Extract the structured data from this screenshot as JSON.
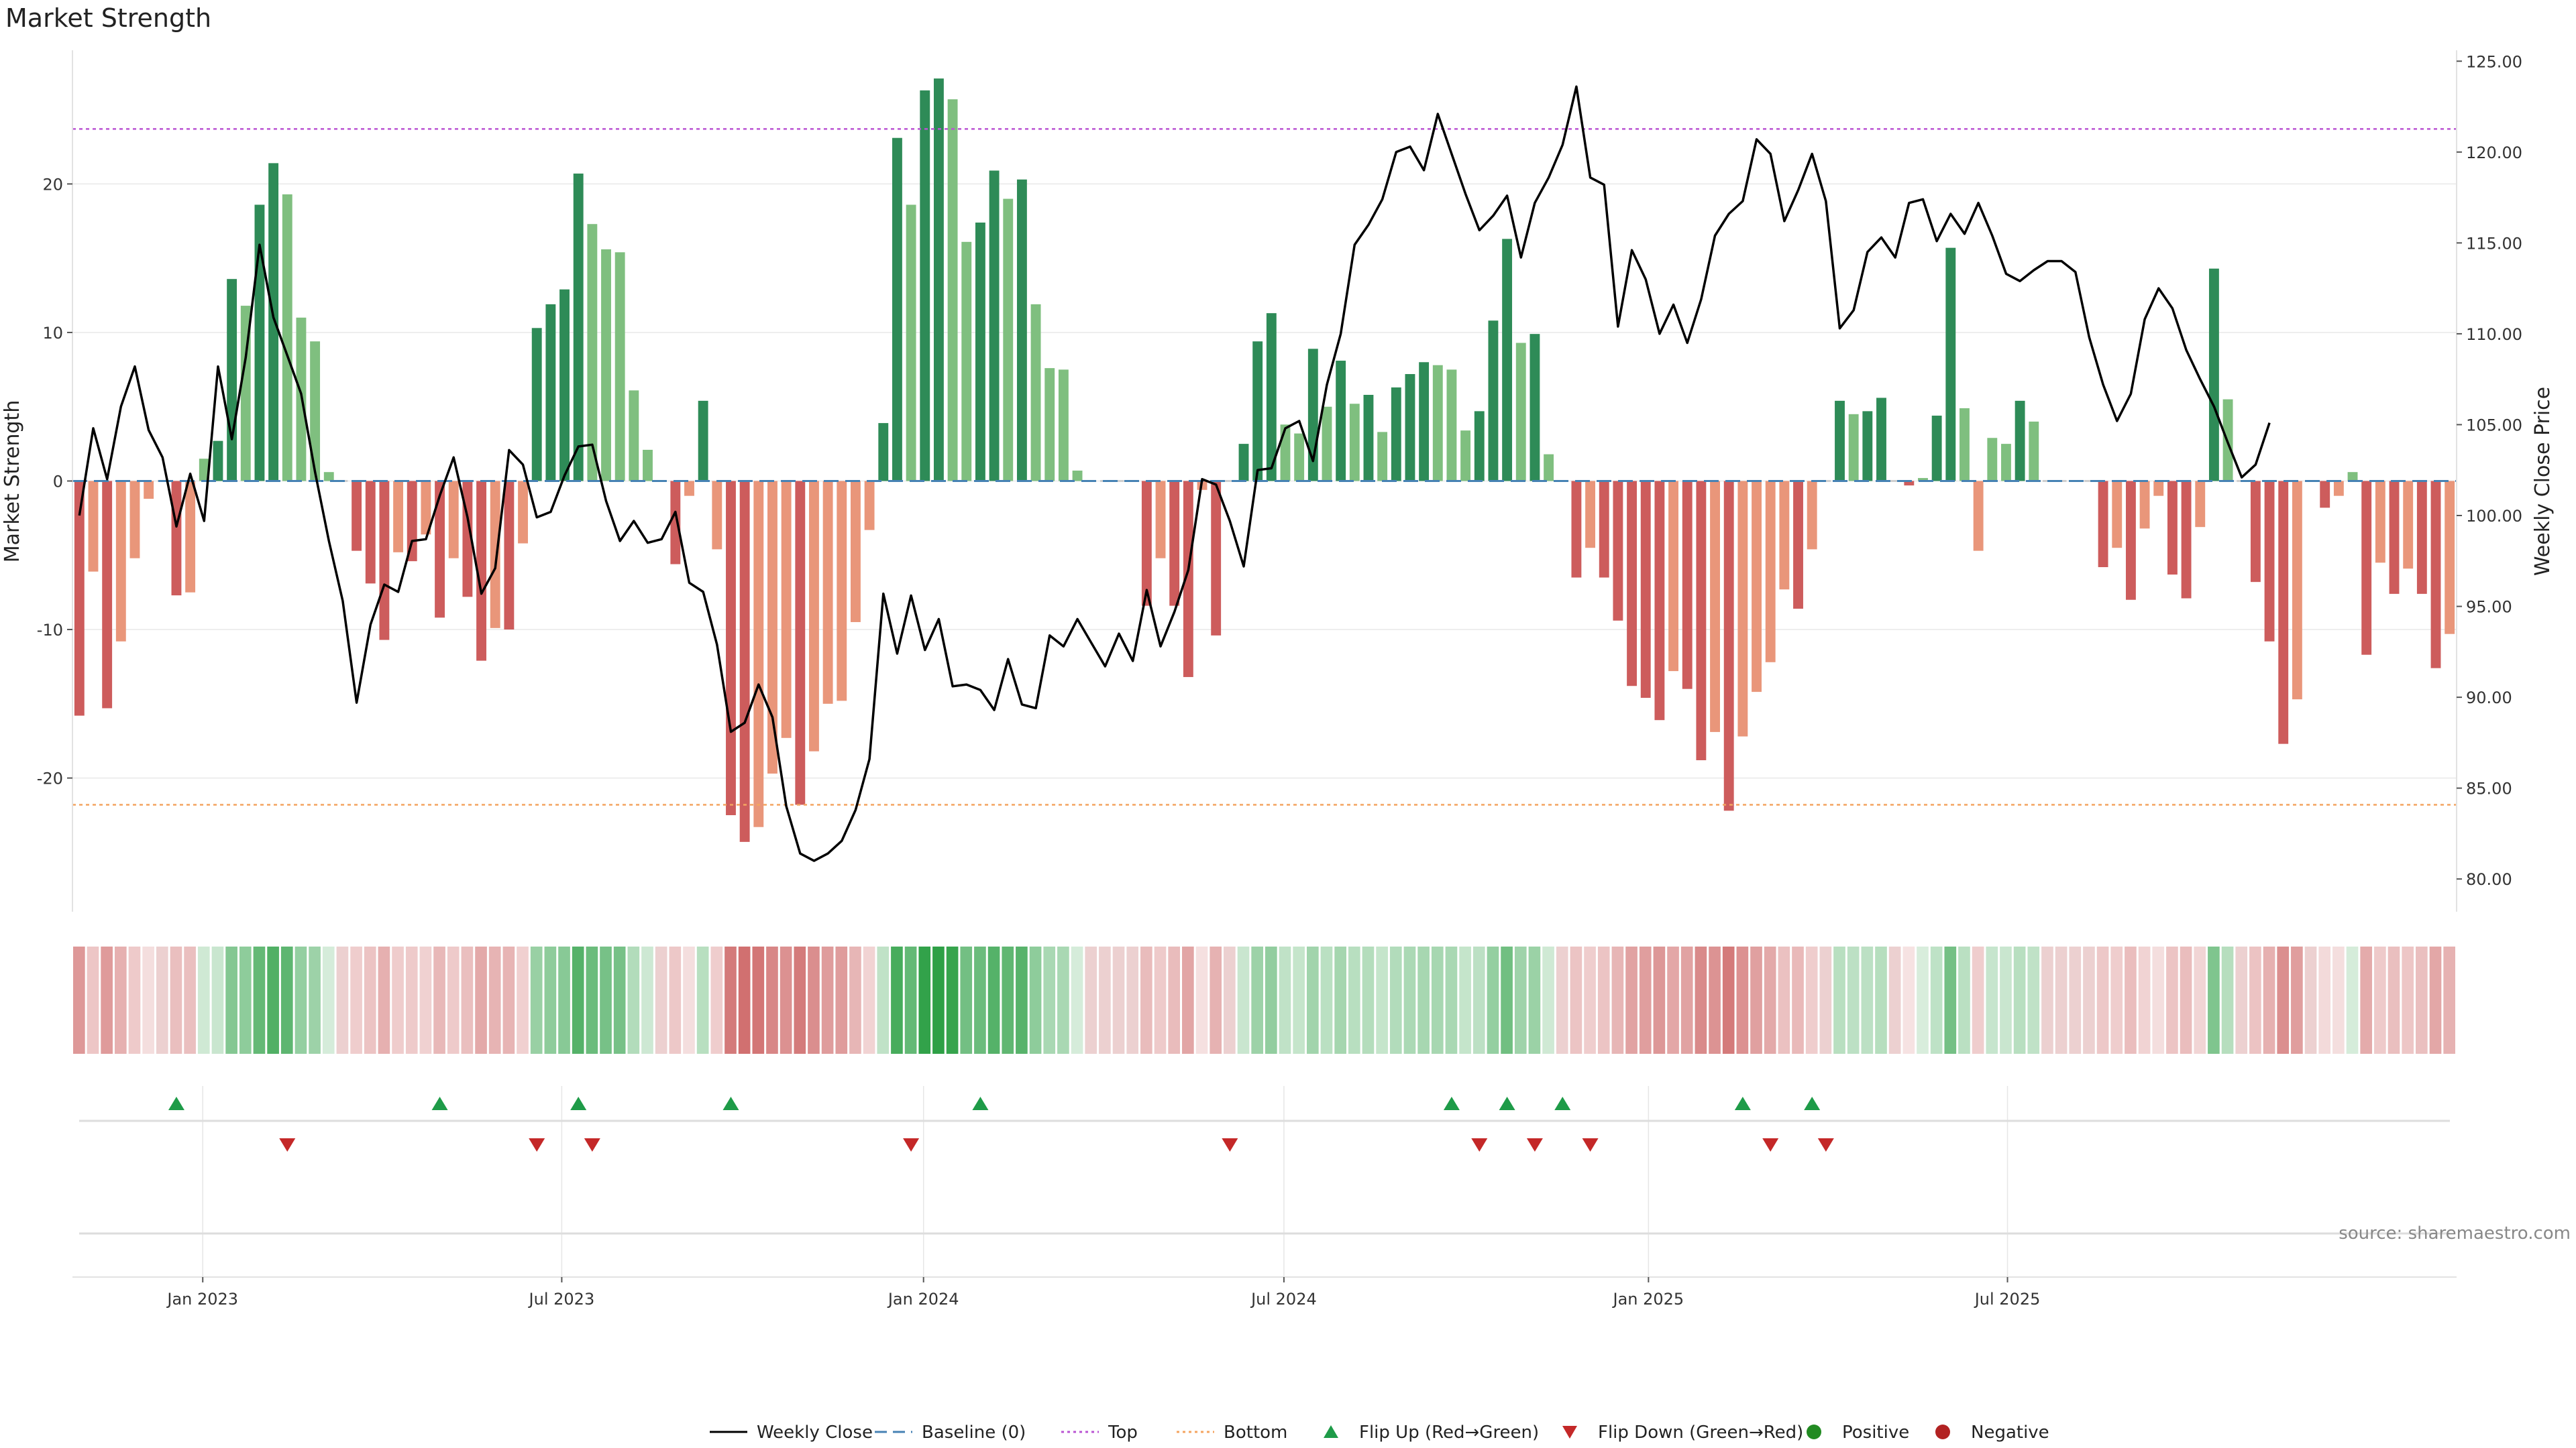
{
  "chart_data": {
    "type": "bar+line",
    "title": "Market Strength",
    "ylabel_left": "Market Strength",
    "ylabel_right": "Weekly Close Price",
    "ylim_left": [
      -29,
      29
    ],
    "ylim_right": [
      78.2,
      125.6
    ],
    "left_ticks": [
      "20",
      "10",
      "0",
      "-10",
      "-20"
    ],
    "left_tick_values": [
      20,
      10,
      0,
      -10,
      -20
    ],
    "right_ticks": [
      "125.00",
      "120.00",
      "115.00",
      "110.00",
      "105.00",
      "100.00",
      "95.00",
      "90.00",
      "85.00",
      "80.00"
    ],
    "right_tick_values": [
      125,
      120,
      115,
      110,
      105,
      100,
      95,
      90,
      85,
      80
    ],
    "x_ticks": [
      "Jan 2023",
      "Jul 2023",
      "Jan 2024",
      "Jul 2024",
      "Jan 2025",
      "Jul 2025"
    ],
    "x_tick_weeks": [
      9.4,
      35.3,
      61.4,
      87.4,
      113.7,
      139.6
    ],
    "top_threshold": 23.7,
    "bottom_threshold": -21.8,
    "strength": [
      -15.8,
      -6.1,
      -15.3,
      -10.8,
      -5.2,
      -1.2,
      0,
      -7.7,
      -7.5,
      1.5,
      2.7,
      13.6,
      11.8,
      18.6,
      21.4,
      19.3,
      11.0,
      9.4,
      0.6,
      0,
      -4.7,
      -6.9,
      -10.7,
      -4.8,
      -5.4,
      -3.6,
      -9.2,
      -5.2,
      -7.8,
      -12.1,
      -9.9,
      -10.0,
      -4.2,
      10.3,
      11.9,
      12.9,
      20.7,
      17.3,
      15.6,
      15.4,
      6.1,
      2.1,
      0,
      -5.6,
      -1.0,
      5.4,
      -4.6,
      -22.5,
      -24.3,
      -23.3,
      -19.7,
      -17.3,
      -21.8,
      -18.2,
      -15.0,
      -14.8,
      -9.5,
      -3.3,
      3.9,
      23.1,
      18.6,
      26.3,
      27.1,
      25.7,
      16.1,
      17.4,
      20.9,
      19.0,
      20.3,
      11.9,
      7.6,
      7.5,
      0.7,
      0,
      0,
      0,
      0,
      -8.4,
      -5.2,
      -8.4,
      -13.2,
      -0.6,
      -10.4,
      0,
      2.5,
      9.4,
      11.3,
      3.8,
      3.2,
      8.9,
      5.0,
      8.1,
      5.2,
      5.8,
      3.3,
      6.3,
      7.2,
      8.0,
      7.8,
      7.5,
      3.4,
      4.7,
      10.8,
      16.3,
      9.3,
      9.9,
      1.8,
      0,
      -6.5,
      -4.5,
      -6.5,
      -9.4,
      -13.8,
      -14.6,
      -16.1,
      -12.8,
      -14.0,
      -18.8,
      -16.9,
      -22.2,
      -17.2,
      -14.2,
      -12.2,
      -7.3,
      -8.6,
      -4.6,
      0,
      5.4,
      4.5,
      4.7,
      5.6,
      0,
      -0.3,
      0.2,
      4.4,
      15.7,
      4.9,
      -4.7,
      2.9,
      2.5,
      5.4,
      4.0,
      0,
      0,
      0,
      0,
      -5.8,
      -4.5,
      -8.0,
      -3.2,
      -1.0,
      -6.3,
      -7.9,
      -3.1,
      14.3,
      5.5,
      0,
      -6.8,
      -10.8,
      -17.7,
      -14.7,
      0,
      -1.8,
      -1.0,
      0.6,
      -11.7,
      -5.5,
      -7.6,
      -5.9,
      -7.6,
      -12.6,
      -10.3
    ],
    "close": [
      100.0,
      104.8,
      102.0,
      106.0,
      108.2,
      104.7,
      103.2,
      99.4,
      102.3,
      99.7,
      108.2,
      104.2,
      108.7,
      114.9,
      110.9,
      108.8,
      106.7,
      102.4,
      98.6,
      95.3,
      89.7,
      94.0,
      96.2,
      95.8,
      98.6,
      98.7,
      101.1,
      103.2,
      99.9,
      95.7,
      97.1,
      103.6,
      102.8,
      99.9,
      100.2,
      102.2,
      103.8,
      103.9,
      100.8,
      98.6,
      99.7,
      98.5,
      98.7,
      100.2,
      96.3,
      95.8,
      92.9,
      88.1,
      88.6,
      90.7,
      88.9,
      84.0,
      81.4,
      81.0,
      81.4,
      82.1,
      83.8,
      86.6,
      95.7,
      92.4,
      95.6,
      92.6,
      94.3,
      90.6,
      90.7,
      90.4,
      89.3,
      92.1,
      89.6,
      89.4,
      93.4,
      92.8,
      94.3,
      93.0,
      91.7,
      93.5,
      92.0,
      95.9,
      92.8,
      94.7,
      97.0,
      102.0,
      101.7,
      99.7,
      97.2,
      102.5,
      102.6,
      104.8,
      105.2,
      103.0,
      107.2,
      110.0,
      114.9,
      116.0,
      117.4,
      120.0,
      120.3,
      119.0,
      122.1,
      119.9,
      117.7,
      115.7,
      116.5,
      117.6,
      114.2,
      117.2,
      118.6,
      120.4,
      123.6,
      118.6,
      118.2,
      110.4,
      114.6,
      113.0,
      110.0,
      111.6,
      109.5,
      111.9,
      115.4,
      116.6,
      117.3,
      120.7,
      119.9,
      116.2,
      117.9,
      119.9,
      117.3,
      110.3,
      111.3,
      114.5,
      115.3,
      114.2,
      117.2,
      117.4,
      115.1,
      116.6,
      115.5,
      117.2,
      115.4,
      113.3,
      112.9,
      113.5,
      114.0,
      114.0,
      113.4,
      109.8,
      107.2,
      105.2,
      106.7,
      110.8,
      112.5,
      111.4,
      109.1,
      107.5,
      106.0,
      104.0,
      102.1,
      102.8,
      105.1
    ],
    "flip_up_weeks": [
      7,
      26,
      36,
      47,
      65,
      99,
      103,
      107,
      120,
      125
    ],
    "flip_down_weeks": [
      15,
      33,
      37,
      60,
      83,
      101,
      105,
      109,
      122,
      126
    ],
    "colors": {
      "pos_strong": "#2e8b57",
      "pos_light": "#7fbf7f",
      "neg_strong": "#cd5c5c",
      "neg_light": "#e9967a",
      "line": "#000000",
      "baseline": "#4682b4",
      "top": "#ba55d3",
      "bottom": "#f4a460",
      "flip_up": "#1e9b48",
      "flip_down": "#c42828"
    },
    "legend": [
      {
        "label": "Weekly Close",
        "kind": "line",
        "color": "#000000"
      },
      {
        "label": "Baseline (0)",
        "kind": "dash",
        "color": "#4682b4"
      },
      {
        "label": "Top",
        "kind": "dot",
        "color": "#ba55d3"
      },
      {
        "label": "Bottom",
        "kind": "dot",
        "color": "#f4a460"
      },
      {
        "label": "Flip Up (Red→Green)",
        "kind": "up",
        "color": "#1e9b48"
      },
      {
        "label": "Flip Down (Green→Red)",
        "kind": "down",
        "color": "#c42828"
      },
      {
        "label": "Positive",
        "kind": "circle",
        "color": "#228b22"
      },
      {
        "label": "Negative",
        "kind": "circle",
        "color": "#b22222"
      }
    ],
    "source": "source: sharemaestro.com"
  }
}
